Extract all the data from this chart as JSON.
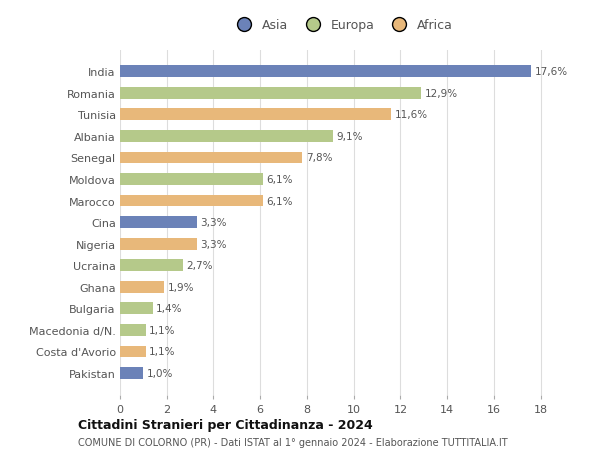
{
  "categories": [
    "Pakistan",
    "Costa d'Avorio",
    "Macedonia d/N.",
    "Bulgaria",
    "Ghana",
    "Ucraina",
    "Nigeria",
    "Cina",
    "Marocco",
    "Moldova",
    "Senegal",
    "Albania",
    "Tunisia",
    "Romania",
    "India"
  ],
  "values": [
    1.0,
    1.1,
    1.1,
    1.4,
    1.9,
    2.7,
    3.3,
    3.3,
    6.1,
    6.1,
    7.8,
    9.1,
    11.6,
    12.9,
    17.6
  ],
  "labels": [
    "1,0%",
    "1,1%",
    "1,1%",
    "1,4%",
    "1,9%",
    "2,7%",
    "3,3%",
    "3,3%",
    "6,1%",
    "6,1%",
    "7,8%",
    "9,1%",
    "11,6%",
    "12,9%",
    "17,6%"
  ],
  "continents": [
    "Asia",
    "Africa",
    "Europa",
    "Europa",
    "Africa",
    "Europa",
    "Africa",
    "Asia",
    "Africa",
    "Europa",
    "Africa",
    "Europa",
    "Africa",
    "Europa",
    "Asia"
  ],
  "continent_colors": {
    "Asia": "#6b82b8",
    "Europa": "#b5c98a",
    "Africa": "#e8b87a"
  },
  "legend_labels": [
    "Asia",
    "Europa",
    "Africa"
  ],
  "legend_colors": [
    "#6b82b8",
    "#b5c98a",
    "#e8b87a"
  ],
  "xlim": [
    0,
    19
  ],
  "xticks": [
    0,
    2,
    4,
    6,
    8,
    10,
    12,
    14,
    16,
    18
  ],
  "title": "Cittadini Stranieri per Cittadinanza - 2024",
  "subtitle": "COMUNE DI COLORNO (PR) - Dati ISTAT al 1° gennaio 2024 - Elaborazione TUTTITALIA.IT",
  "background_color": "#ffffff",
  "grid_color": "#dddddd",
  "bar_height": 0.55
}
